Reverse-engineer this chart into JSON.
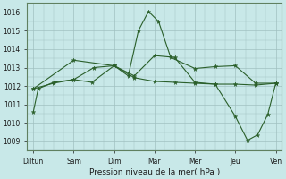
{
  "background_color": "#c8e8e8",
  "plot_bg_color": "#c8e8e8",
  "grid_color": "#a0c0c0",
  "line_color": "#2a5f2a",
  "title": "Pression niveau de la mer( hPa )",
  "x_labels": [
    "Diltun",
    "Sam",
    "Dim",
    "Mar",
    "Mer",
    "Jeu",
    "Ven"
  ],
  "x_positions": [
    0,
    1,
    2,
    3,
    4,
    5,
    6
  ],
  "ylim": [
    1008.5,
    1016.5
  ],
  "yticks": [
    1009,
    1010,
    1011,
    1012,
    1013,
    1014,
    1015,
    1016
  ],
  "series1": {
    "x": [
      0.0,
      0.12,
      0.5,
      1.0,
      1.45,
      2.0,
      2.35,
      2.6,
      2.85,
      3.1,
      3.4,
      4.0,
      4.5,
      5.0,
      5.5,
      6.0
    ],
    "y": [
      1010.6,
      1011.85,
      1012.2,
      1012.35,
      1012.2,
      1013.1,
      1012.55,
      1015.0,
      1016.05,
      1015.5,
      1013.55,
      1012.95,
      1013.05,
      1013.1,
      1012.15,
      1012.15
    ]
  },
  "series2": {
    "x": [
      0.0,
      0.5,
      1.0,
      1.5,
      2.0,
      2.5,
      3.0,
      3.5,
      4.0,
      4.5,
      5.0,
      5.5,
      6.0
    ],
    "y": [
      1011.85,
      1012.15,
      1012.35,
      1013.0,
      1013.1,
      1012.45,
      1012.25,
      1012.2,
      1012.15,
      1012.1,
      1012.1,
      1012.05,
      1012.15
    ]
  },
  "series3": {
    "x": [
      0.0,
      1.0,
      2.0,
      2.5,
      3.0,
      3.5,
      4.0,
      4.5,
      5.0,
      5.3,
      5.55,
      5.8,
      6.0
    ],
    "y": [
      1011.85,
      1013.4,
      1013.1,
      1012.55,
      1013.65,
      1013.55,
      1012.2,
      1012.1,
      1010.35,
      1009.05,
      1009.35,
      1010.45,
      1012.15
    ]
  }
}
